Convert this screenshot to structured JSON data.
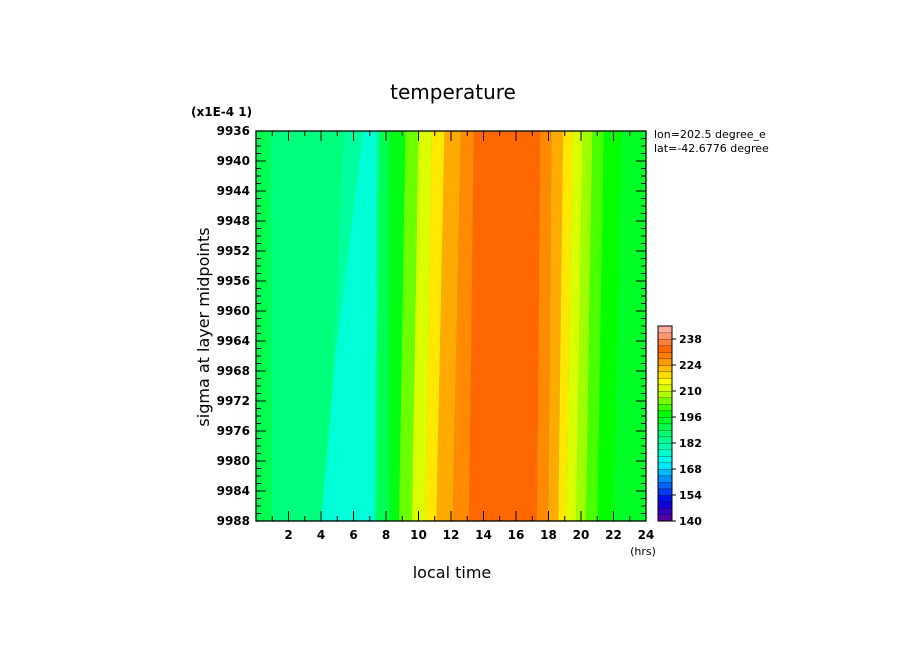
{
  "chart_data": {
    "type": "heatmap",
    "title": "temperature",
    "xlabel": "local time",
    "ylabel": "sigma at layer midpoints",
    "x_unit": "(hrs)",
    "y_scale_label": "(x1E-4 1)",
    "annotations": [
      "lon=202.5 degree_e",
      "lat=-42.6776 degree"
    ],
    "xlim": [
      0,
      24
    ],
    "ylim": [
      9936,
      9988
    ],
    "x_ticks": [
      2,
      4,
      6,
      8,
      10,
      12,
      14,
      16,
      18,
      20,
      22,
      24
    ],
    "y_ticks": [
      9936,
      9940,
      9944,
      9948,
      9952,
      9956,
      9960,
      9964,
      9968,
      9972,
      9976,
      9980,
      9984,
      9988
    ],
    "colorbar": {
      "min": 140,
      "max": 245,
      "tick_values": [
        140,
        154,
        168,
        182,
        196,
        210,
        224,
        238
      ]
    },
    "bands": [
      {
        "x_top": [
          0,
          0.9
        ],
        "x_bottom": [
          0,
          1.0
        ],
        "value": 190
      },
      {
        "x_top": [
          0.9,
          5.4
        ],
        "x_bottom": [
          1.0,
          4.3
        ],
        "value": 186
      },
      {
        "x_top": [
          5.4,
          7.6
        ],
        "x_bottom": [
          4.3,
          7.4
        ],
        "value": 182
      },
      {
        "x_top": [
          7.6,
          8.2
        ],
        "x_bottom": [
          7.4,
          8.2
        ],
        "value": 190
      },
      {
        "x_top": [
          8.2,
          9.2
        ],
        "x_bottom": [
          8.2,
          8.8
        ],
        "value": 196
      },
      {
        "x_top": [
          9.2,
          10.0
        ],
        "x_bottom": [
          8.8,
          9.6
        ],
        "value": 204
      },
      {
        "x_top": [
          10.0,
          10.8
        ],
        "x_bottom": [
          9.6,
          10.4
        ],
        "value": 212
      },
      {
        "x_top": [
          10.8,
          11.6
        ],
        "x_bottom": [
          10.4,
          11.1
        ],
        "value": 218
      },
      {
        "x_top": [
          11.6,
          12.6
        ],
        "x_bottom": [
          11.1,
          12.1
        ],
        "value": 224
      },
      {
        "x_top": [
          12.6,
          13.4
        ],
        "x_bottom": [
          12.1,
          13.1
        ],
        "value": 228
      },
      {
        "x_top": [
          13.4,
          17.5
        ],
        "x_bottom": [
          13.1,
          17.3
        ],
        "value": 232
      },
      {
        "x_top": [
          17.5,
          18.2
        ],
        "x_bottom": [
          17.3,
          18.0
        ],
        "value": 228
      },
      {
        "x_top": [
          18.2,
          18.9
        ],
        "x_bottom": [
          18.0,
          18.6
        ],
        "value": 224
      },
      {
        "x_top": [
          18.9,
          19.5
        ],
        "x_bottom": [
          18.6,
          19.1
        ],
        "value": 218
      },
      {
        "x_top": [
          19.5,
          20.1
        ],
        "x_bottom": [
          19.1,
          19.7
        ],
        "value": 212
      },
      {
        "x_top": [
          20.1,
          20.7
        ],
        "x_bottom": [
          19.7,
          20.3
        ],
        "value": 207
      },
      {
        "x_top": [
          20.7,
          21.4
        ],
        "x_bottom": [
          20.3,
          21.0
        ],
        "value": 202
      },
      {
        "x_top": [
          21.4,
          22.5
        ],
        "x_bottom": [
          21.0,
          22.0
        ],
        "value": 198
      },
      {
        "x_top": [
          22.5,
          24
        ],
        "x_bottom": [
          22.0,
          24
        ],
        "value": 194
      }
    ],
    "cold_core": {
      "x_top": [
        6.6,
        7.4
      ],
      "x_mid": [
        4.9,
        6.6
      ],
      "x_bottom": [
        4.0,
        7.3
      ],
      "y_mid": 9966,
      "value": 176
    },
    "grid": false
  }
}
